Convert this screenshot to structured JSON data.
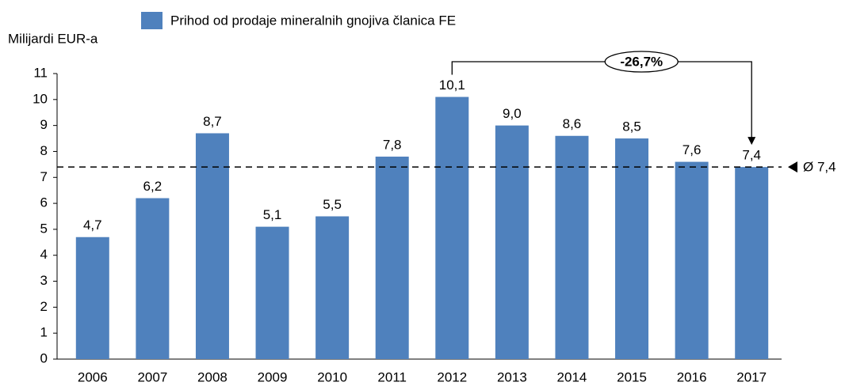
{
  "chart_data": {
    "type": "bar",
    "y_label": "Milijardi EUR-a",
    "categories": [
      "2006",
      "2007",
      "2008",
      "2009",
      "2010",
      "2011",
      "2012",
      "2013",
      "2014",
      "2015",
      "2016",
      "2017"
    ],
    "series": [
      {
        "name": "Prihod od prodaje mineralnih gnojiva članica FE",
        "color": "#4f81bd",
        "values": [
          4.7,
          6.2,
          8.7,
          5.1,
          5.5,
          7.8,
          10.1,
          9.0,
          8.6,
          8.5,
          7.6,
          7.4
        ],
        "value_labels": [
          "4,7",
          "6,2",
          "8,7",
          "5,1",
          "5,5",
          "7,8",
          "10,1",
          "9,0",
          "8,6",
          "8,5",
          "7,6",
          "7,4"
        ]
      }
    ],
    "ylim": [
      0,
      11
    ],
    "yticks": [
      0,
      1,
      2,
      3,
      4,
      5,
      6,
      7,
      8,
      9,
      10,
      11
    ],
    "average": {
      "value": 7.4,
      "label": "Ø 7,4"
    },
    "change_annotation": {
      "label": "-26,7%",
      "from": "2012",
      "to": "2017"
    }
  }
}
